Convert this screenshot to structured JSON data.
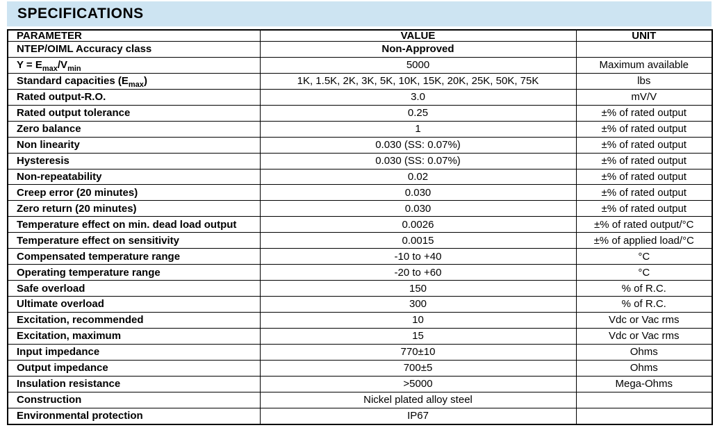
{
  "page": {
    "title": "SPECIFICATIONS",
    "header_bg": "#cde4f2",
    "text_color": "#000000",
    "border_color": "#000000"
  },
  "table": {
    "columns": [
      "PARAMETER",
      "VALUE",
      "UNIT"
    ],
    "rows": [
      {
        "param": "NTEP/OIML Accuracy class",
        "value": "Non-Approved",
        "value_bold": true,
        "unit": ""
      },
      {
        "param": [
          {
            "t": "Y = E"
          },
          {
            "t": "max",
            "sub": true
          },
          {
            "t": "/V"
          },
          {
            "t": "min",
            "sub": true
          }
        ],
        "value": "5000",
        "unit": "Maximum available"
      },
      {
        "param": [
          {
            "t": "Standard capacities (E"
          },
          {
            "t": "max",
            "sub": true
          },
          {
            "t": ")"
          }
        ],
        "value": "1K, 1.5K, 2K, 3K, 5K, 10K, 15K, 20K, 25K, 50K, 75K",
        "unit": "lbs"
      },
      {
        "param": "Rated output-R.O.",
        "value": "3.0",
        "unit": "mV/V"
      },
      {
        "param": "Rated output tolerance",
        "value": "0.25",
        "unit": "±% of rated output"
      },
      {
        "param": "Zero balance",
        "value": "1",
        "unit": "±% of rated output"
      },
      {
        "param": "Non linearity",
        "value": "0.030 (SS: 0.07%)",
        "unit": "±% of rated output"
      },
      {
        "param": "Hysteresis",
        "value": "0.030 (SS: 0.07%)",
        "unit": "±% of rated output"
      },
      {
        "param": "Non-repeatability",
        "value": "0.02",
        "unit": "±% of rated output"
      },
      {
        "param": "Creep error (20 minutes)",
        "value": "0.030",
        "unit": "±% of rated output"
      },
      {
        "param": "Zero return (20 minutes)",
        "value": "0.030",
        "unit": "±% of rated output"
      },
      {
        "param": "Temperature effect on min. dead load output",
        "value": "0.0026",
        "unit": "±% of rated output/°C"
      },
      {
        "param": "Temperature effect on sensitivity",
        "value": "0.0015",
        "unit": "±% of applied load/°C"
      },
      {
        "param": "Compensated temperature range",
        "value": "-10 to +40",
        "unit": "°C"
      },
      {
        "param": "Operating temperature range",
        "value": "-20 to +60",
        "unit": "°C"
      },
      {
        "param": "Safe overload",
        "value": "150",
        "unit": "% of R.C."
      },
      {
        "param": "Ultimate overload",
        "value": "300",
        "unit": "% of R.C."
      },
      {
        "param": "Excitation, recommended",
        "value": "10",
        "unit": "Vdc or Vac rms"
      },
      {
        "param": "Excitation, maximum",
        "value": "15",
        "unit": "Vdc or Vac rms"
      },
      {
        "param": "Input impedance",
        "value": "770±10",
        "unit": "Ohms"
      },
      {
        "param": "Output impedance",
        "value": "700±5",
        "unit": "Ohms"
      },
      {
        "param": "Insulation resistance",
        "value": ">5000",
        "unit": "Mega-Ohms"
      },
      {
        "param": "Construction",
        "value": "Nickel plated alloy steel",
        "unit": ""
      },
      {
        "param": "Environmental protection",
        "value": "IP67",
        "unit": ""
      }
    ]
  }
}
